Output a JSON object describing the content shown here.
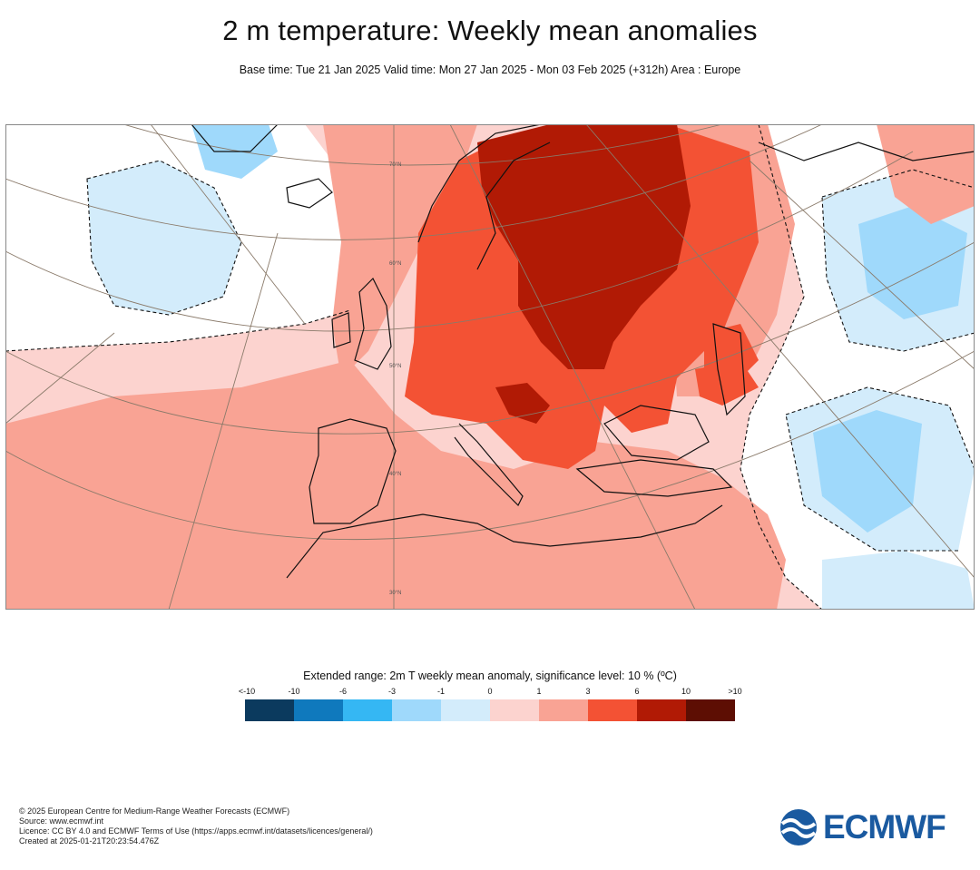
{
  "header": {
    "title": "2 m temperature: Weekly mean anomalies",
    "subtitle": "Base time: Tue 21 Jan 2025 Valid time: Mon 27 Jan 2025 - Mon 03 Feb 2025 (+312h) Area : Europe"
  },
  "map": {
    "area": "Europe",
    "parallel_labels": [
      "70°N",
      "60°N",
      "50°N",
      "40°N",
      "30°N"
    ],
    "colors": {
      "ocean_neutral": "#ffffff",
      "land_line": "#000000",
      "graticule": "#8a7a6a"
    }
  },
  "legend": {
    "title": "Extended range: 2m T weekly mean anomaly, significance level: 10 % (ºC)",
    "ticks": [
      "<-10",
      "-10",
      "-6",
      "-3",
      "-1",
      "0",
      "1",
      "3",
      "6",
      "10",
      ">10"
    ],
    "colors": [
      "#0b3a5e",
      "#0f79bd",
      "#35b7f3",
      "#9fd9fb",
      "#d3ecfb",
      "#fcd3cf",
      "#f9a394",
      "#f35234",
      "#b11a05",
      "#5d0e03"
    ]
  },
  "footer": {
    "lines": [
      "© 2025 European Centre for Medium-Range Weather Forecasts (ECMWF)",
      "Source: www.ecmwf.int",
      "Licence: CC BY 4.0 and ECMWF Terms of Use (https://apps.ecmwf.int/datasets/licences/general/)",
      "Created at 2025-01-21T20:23:54.476Z"
    ]
  },
  "logo": {
    "text": "ECMWF",
    "color": "#1a5aa0"
  }
}
